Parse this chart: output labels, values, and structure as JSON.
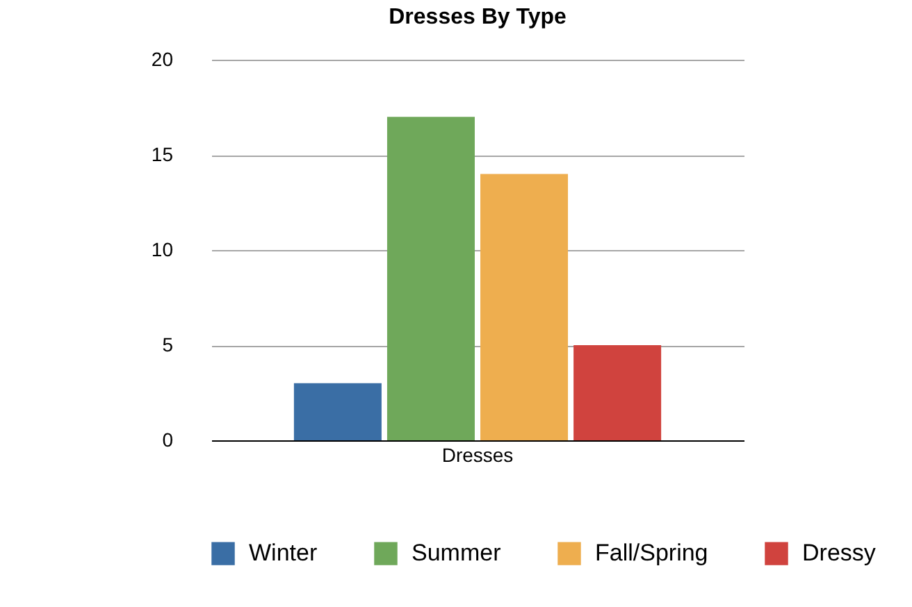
{
  "chart_data": {
    "type": "bar",
    "title": "Dresses By Type",
    "categories": [
      "Dresses"
    ],
    "series": [
      {
        "name": "Winter",
        "color": "#3a6ea5",
        "values": [
          3
        ]
      },
      {
        "name": "Summer",
        "color": "#6fa85a",
        "values": [
          17
        ]
      },
      {
        "name": "Fall/Spring",
        "color": "#eeae4f",
        "values": [
          14
        ]
      },
      {
        "name": "Dressy",
        "color": "#d0433e",
        "values": [
          5
        ]
      }
    ],
    "ylim": [
      0,
      20
    ],
    "yticks": [
      0,
      5,
      10,
      15,
      20
    ],
    "grid": "y",
    "legend": "bottom"
  }
}
